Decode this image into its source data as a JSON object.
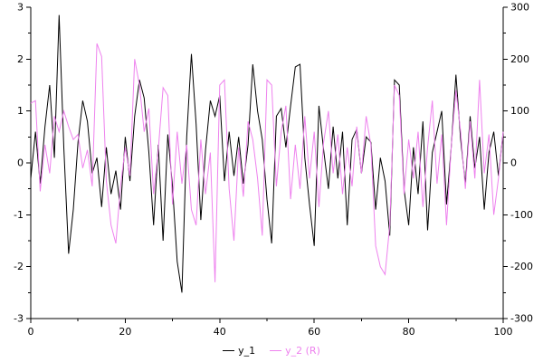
{
  "chart_data": {
    "type": "line",
    "title": "",
    "xlabel": "",
    "ylabel_left": "",
    "ylabel_right": "",
    "xlim": [
      0,
      100
    ],
    "left_ylim": [
      -3,
      3
    ],
    "right_ylim": [
      -300,
      300
    ],
    "x_ticks": [
      0,
      20,
      40,
      60,
      80,
      100
    ],
    "left_ticks": [
      3,
      2,
      1,
      0,
      -1,
      -2,
      -3
    ],
    "right_ticks": [
      300,
      200,
      100,
      0,
      -100,
      -200,
      -300
    ],
    "grid": false,
    "legend_position": "bottom",
    "series": [
      {
        "name": "y_1",
        "axis": "left",
        "color": "#000000",
        "values": [
          -0.3,
          0.6,
          -0.4,
          0.7,
          1.5,
          0.1,
          2.85,
          0.3,
          -1.75,
          -0.9,
          0.4,
          1.2,
          0.8,
          -0.2,
          0.1,
          -0.85,
          0.3,
          -0.6,
          -0.15,
          -0.9,
          0.5,
          -0.35,
          0.9,
          1.6,
          1.25,
          0.2,
          -1.2,
          0.35,
          -1.5,
          0.55,
          -0.45,
          -1.9,
          -2.5,
          0.5,
          2.1,
          0.75,
          -1.1,
          0.25,
          1.2,
          0.9,
          1.3,
          -0.35,
          0.6,
          -0.25,
          0.5,
          -0.4,
          0.35,
          1.9,
          1.0,
          0.45,
          -0.7,
          -1.55,
          0.9,
          1.05,
          0.3,
          1.1,
          1.85,
          1.9,
          0.1,
          -0.8,
          -1.6,
          1.1,
          0.25,
          -0.5,
          0.7,
          -0.3,
          0.6,
          -1.2,
          0.45,
          0.65,
          -0.2,
          0.5,
          0.4,
          -0.9,
          0.1,
          -0.35,
          -1.4,
          1.6,
          1.5,
          -0.5,
          -1.2,
          0.3,
          -0.6,
          0.8,
          -1.3,
          0.2,
          0.6,
          1.0,
          -0.8,
          0.3,
          1.7,
          0.45,
          -0.4,
          0.9,
          -0.1,
          0.5,
          -0.9,
          0.2,
          0.6,
          -0.25,
          0.6
        ]
      },
      {
        "name": "y_2 (R)",
        "axis": "right",
        "color": "#EE82EE",
        "values": [
          115,
          120,
          -55,
          35,
          -20,
          90,
          60,
          100,
          70,
          45,
          55,
          -10,
          25,
          -45,
          230,
          205,
          -35,
          -120,
          -155,
          -45,
          30,
          -25,
          200,
          150,
          60,
          105,
          -60,
          25,
          145,
          130,
          -80,
          60,
          -40,
          35,
          -90,
          -120,
          45,
          -60,
          20,
          -230,
          150,
          160,
          -50,
          -150,
          30,
          -65,
          80,
          45,
          -30,
          -140,
          160,
          150,
          -45,
          60,
          110,
          -70,
          35,
          -50,
          90,
          -30,
          60,
          -85,
          40,
          100,
          -20,
          55,
          -60,
          30,
          -45,
          70,
          -20,
          90,
          35,
          -160,
          -200,
          -215,
          -120,
          150,
          130,
          -60,
          45,
          -30,
          60,
          -85,
          30,
          120,
          -40,
          55,
          -120,
          30,
          140,
          60,
          -50,
          80,
          -30,
          160,
          -20,
          55,
          -100,
          -30,
          60
        ]
      }
    ]
  }
}
